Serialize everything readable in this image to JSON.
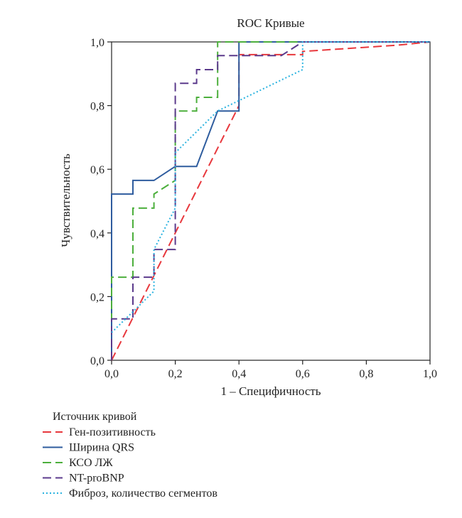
{
  "chart_data": {
    "type": "line",
    "title": "ROC Кривые",
    "xlabel": "1 – Специфичность",
    "ylabel": "Чувствительность",
    "xlim": [
      0,
      1
    ],
    "ylim": [
      0,
      1
    ],
    "x_ticks": [
      "0,0",
      "0,2",
      "0,4",
      "0,6",
      "0,8",
      "1,0"
    ],
    "y_ticks": [
      "0,0",
      "0,2",
      "0,4",
      "0,6",
      "0,8",
      "1,0"
    ],
    "grid": false,
    "legend_title": "Источник кривой",
    "legend_position": "bottom-left",
    "series": [
      {
        "name": "Ген-позитивность",
        "color": "#e8383d",
        "dash": "dashed",
        "points": [
          [
            0,
            0
          ],
          [
            0.4,
            0.8
          ],
          [
            0.4,
            0.96
          ],
          [
            0.6,
            0.96
          ],
          [
            0.6,
            0.97
          ],
          [
            0.9,
            0.99
          ],
          [
            1,
            1
          ]
        ]
      },
      {
        "name": "Ширина QRS",
        "color": "#2e5c9e",
        "dash": "solid",
        "points": [
          [
            0,
            0
          ],
          [
            0,
            0.522
          ],
          [
            0.067,
            0.522
          ],
          [
            0.067,
            0.565
          ],
          [
            0.133,
            0.565
          ],
          [
            0.2,
            0.609
          ],
          [
            0.267,
            0.609
          ],
          [
            0.333,
            0.783
          ],
          [
            0.4,
            0.783
          ],
          [
            0.4,
            1
          ],
          [
            1,
            1
          ]
        ]
      },
      {
        "name": "КСО ЛЖ",
        "color": "#4caf3c",
        "dash": "dashed",
        "points": [
          [
            0,
            0
          ],
          [
            0,
            0.261
          ],
          [
            0.067,
            0.261
          ],
          [
            0.067,
            0.478
          ],
          [
            0.133,
            0.478
          ],
          [
            0.133,
            0.522
          ],
          [
            0.2,
            0.565
          ],
          [
            0.2,
            0.783
          ],
          [
            0.267,
            0.783
          ],
          [
            0.267,
            0.826
          ],
          [
            0.333,
            0.826
          ],
          [
            0.333,
            1
          ],
          [
            1,
            1
          ]
        ]
      },
      {
        "name": "NT-proBNP",
        "color": "#5b3a8c",
        "dash": "dashed",
        "points": [
          [
            0,
            0
          ],
          [
            0,
            0.13
          ],
          [
            0.067,
            0.13
          ],
          [
            0.067,
            0.261
          ],
          [
            0.133,
            0.261
          ],
          [
            0.133,
            0.348
          ],
          [
            0.2,
            0.348
          ],
          [
            0.2,
            0.87
          ],
          [
            0.267,
            0.87
          ],
          [
            0.267,
            0.913
          ],
          [
            0.333,
            0.913
          ],
          [
            0.333,
            0.957
          ],
          [
            0.533,
            0.957
          ],
          [
            0.6,
            1
          ],
          [
            1,
            1
          ]
        ]
      },
      {
        "name": "Фиброз, количество сегментов",
        "color": "#2bb3e0",
        "dash": "dotted",
        "points": [
          [
            0,
            0.087
          ],
          [
            0.133,
            0.217
          ],
          [
            0.133,
            0.348
          ],
          [
            0.2,
            0.478
          ],
          [
            0.2,
            0.652
          ],
          [
            0.333,
            0.783
          ],
          [
            0.6,
            0.913
          ],
          [
            0.6,
            1
          ],
          [
            1,
            1
          ]
        ]
      }
    ]
  }
}
